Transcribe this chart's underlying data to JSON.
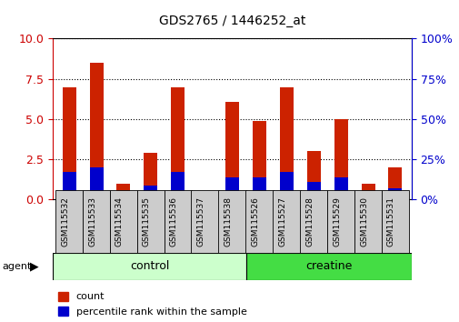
{
  "title": "GDS2765 / 1446252_at",
  "categories": [
    "GSM115532",
    "GSM115533",
    "GSM115534",
    "GSM115535",
    "GSM115536",
    "GSM115537",
    "GSM115538",
    "GSM115526",
    "GSM115527",
    "GSM115528",
    "GSM115529",
    "GSM115530",
    "GSM115531"
  ],
  "count_values": [
    7.0,
    8.5,
    1.0,
    2.9,
    7.0,
    0.05,
    6.1,
    4.9,
    7.0,
    3.0,
    5.0,
    1.0,
    2.0
  ],
  "percentile_values": [
    1.7,
    2.0,
    0.2,
    0.9,
    1.7,
    0.05,
    1.4,
    1.4,
    1.7,
    1.1,
    1.4,
    0.2,
    0.7
  ],
  "groups": [
    {
      "label": "control",
      "start": 0,
      "end": 7,
      "color_light": "#ccffcc",
      "color_dark": "#44dd44"
    },
    {
      "label": "creatine",
      "start": 7,
      "end": 13,
      "color_light": "#44dd44",
      "color_dark": "#44dd44"
    }
  ],
  "group_row_label": "agent",
  "left_yaxis": {
    "min": 0,
    "max": 10,
    "ticks": [
      0,
      2.5,
      5,
      7.5,
      10
    ],
    "color": "#cc0000"
  },
  "right_yaxis": {
    "min": 0,
    "max": 100,
    "ticks": [
      0,
      25,
      50,
      75,
      100
    ],
    "color": "#0000cc"
  },
  "bar_color": "#cc2200",
  "percentile_color": "#0000cc",
  "background_color": "#ffffff",
  "tick_bg_color": "#cccccc",
  "n_categories": 13
}
